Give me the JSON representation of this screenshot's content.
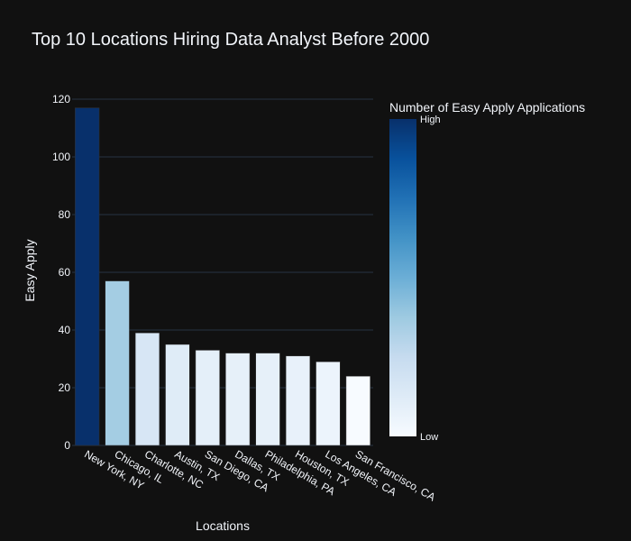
{
  "chart_data": {
    "type": "bar",
    "title": "Top 10 Locations Hiring Data Analyst Before 2000",
    "xlabel": "Locations",
    "ylabel": "Easy Apply",
    "categories": [
      "New York, NY",
      "Chicago, IL",
      "Charlotte, NC",
      "Austin, TX",
      "San Diego, CA",
      "Dallas, TX",
      "Philadelphia, PA",
      "Houston, TX",
      "Los Angeles, CA",
      "San Francisco, CA"
    ],
    "values": [
      117,
      57,
      39,
      35,
      33,
      32,
      32,
      31,
      29,
      24
    ],
    "ylim": [
      0,
      120
    ],
    "yticks": [
      0,
      20,
      40,
      60,
      80,
      100,
      120
    ],
    "grid": true,
    "colorbar": {
      "title": "Number of Easy Apply Applications",
      "high_label": "High",
      "low_label": "Low",
      "colorscale": [
        "#f7fbff",
        "#deebf7",
        "#c6dbef",
        "#9ecae1",
        "#6baed6",
        "#4292c6",
        "#2171b5",
        "#08519c",
        "#08306b"
      ]
    }
  },
  "colors": {
    "background": "#111111",
    "grid": "#283442",
    "text": "#f2f5fa"
  }
}
